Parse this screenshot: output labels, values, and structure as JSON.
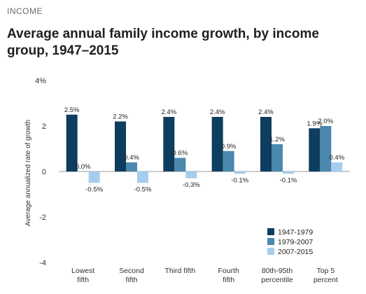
{
  "header": {
    "eyebrow": "INCOME",
    "title": "Average annual family income growth, by income group, 1947–2015"
  },
  "colors": {
    "series": [
      "#0e3d5f",
      "#4a88ae",
      "#a6cdee"
    ],
    "zero_line": "#9a9a9a"
  },
  "chart_data": {
    "type": "bar",
    "title": "Average annual family income growth, by income group, 1947–2015",
    "xlabel": "",
    "ylabel": "Average annualized rate of growth",
    "ylim": [
      -4,
      4
    ],
    "yticks": [
      4,
      2,
      0,
      -2,
      -4
    ],
    "ytick_labels": [
      "4%",
      "2",
      "0",
      "-2",
      "-4"
    ],
    "categories": [
      [
        "Lowest",
        "fifth"
      ],
      [
        "Second",
        "fifth"
      ],
      [
        "Third fifth"
      ],
      [
        "Fourth",
        "fifth"
      ],
      [
        "80th-95th",
        "percentile"
      ],
      [
        "Top 5",
        "percent"
      ]
    ],
    "series": [
      {
        "name": "1947-1979",
        "values": [
          2.5,
          2.2,
          2.4,
          2.4,
          2.4,
          1.9
        ],
        "labels": [
          "2.5%",
          "2.2%",
          "2.4%",
          "2.4%",
          "2.4%",
          "1.9%"
        ]
      },
      {
        "name": "1979-2007",
        "values": [
          0.0,
          0.4,
          0.6,
          0.9,
          1.2,
          2.0
        ],
        "labels": [
          "0.0%",
          "0.4%",
          "0.6%",
          "0.9%",
          "1.2%",
          "2.0%"
        ]
      },
      {
        "name": "2007-2015",
        "values": [
          -0.5,
          -0.5,
          -0.3,
          -0.1,
          -0.1,
          0.4
        ],
        "labels": [
          "-0.5%",
          "-0.5%",
          "-0.3%",
          "-0.1%",
          "-0.1%",
          "0.4%"
        ]
      }
    ],
    "legend_position": "bottom-right",
    "grid": false
  }
}
